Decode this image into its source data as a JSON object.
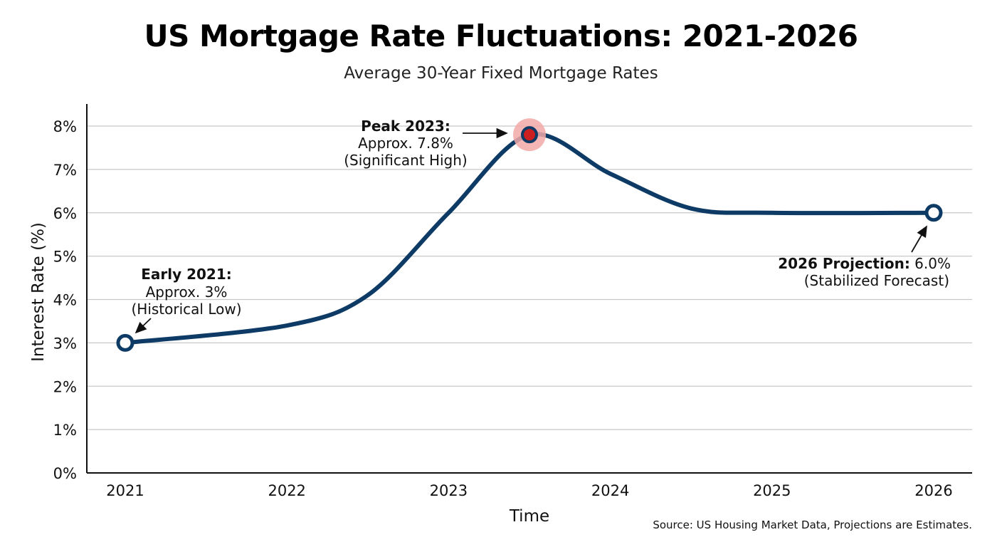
{
  "chart_data": {
    "type": "line",
    "title": "US Mortgage Rate Fluctuations: 2021-2026",
    "subtitle": "Average 30-Year Fixed Mortgage Rates",
    "xlabel": "Time",
    "ylabel": "Interest Rate (%)",
    "x_ticks": [
      "2021",
      "2022",
      "2023",
      "2024",
      "2025",
      "2026"
    ],
    "xlim": [
      2021,
      2026
    ],
    "y_ticks": [
      "0%",
      "1%",
      "2%",
      "3%",
      "4%",
      "5%",
      "6%",
      "7%",
      "8%"
    ],
    "ylim": [
      0,
      8
    ],
    "grid": "horizontal",
    "series": [
      {
        "color": "#0d3b66",
        "x": [
          2021,
          2022,
          2022.5,
          2023,
          2023.5,
          2024,
          2024.5,
          2025,
          2026
        ],
        "y": [
          3.0,
          3.4,
          4.1,
          6.0,
          7.8,
          6.9,
          6.1,
          6.0,
          6.0
        ]
      }
    ],
    "highlight_points": [
      {
        "x": 2021,
        "y": 3.0,
        "style": "hollow"
      },
      {
        "x": 2023.5,
        "y": 7.8,
        "style": "peak"
      },
      {
        "x": 2026,
        "y": 6.0,
        "style": "hollow"
      }
    ],
    "peak_color": "#cc1f1f",
    "peak_halo_color": "#f2a8a8",
    "annotations": [
      {
        "bold": "Early 2021:",
        "lines": [
          "Approx. 3%",
          "(Historical Low)"
        ]
      },
      {
        "bold": "Peak 2023:",
        "lines": [
          "Approx. 7.8%",
          "(Significant High)"
        ]
      },
      {
        "bold": "2026 Projection:",
        "inline": " 6.0%",
        "lines": [
          "(Stabilized Forecast)"
        ]
      }
    ],
    "source": "Source: US Housing Market Data, Projections are Estimates."
  }
}
